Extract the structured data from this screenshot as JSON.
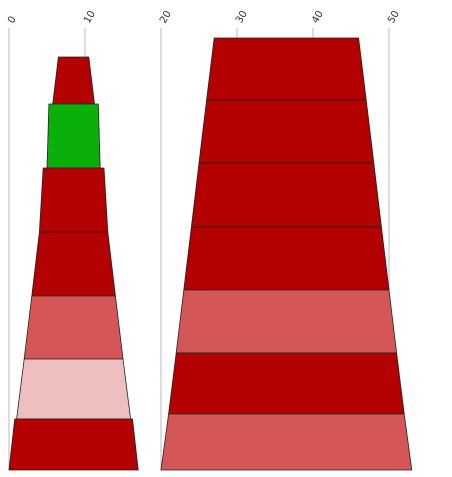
{
  "chart_data": {
    "type": "funnel",
    "title": "",
    "xlabel": "",
    "ylabel": "",
    "grid": true,
    "x_axis": {
      "range": [
        0,
        55
      ],
      "ticks": [
        0,
        10,
        20,
        30,
        40,
        50
      ],
      "tick_labels": [
        "0",
        "10",
        "20",
        "30",
        "40",
        "50"
      ],
      "position": "top",
      "label_rotation": -60
    },
    "colors": {
      "dark_red": "#b30000",
      "medium_red": "#d45656",
      "light_pink": "#efbebe",
      "green": "#0aaf0a"
    },
    "funnels": [
      {
        "offset": 0,
        "shape": "funnel",
        "segments": [
          {
            "top_width": 4.0,
            "bottom_width": 5.5,
            "color": "#b30000"
          },
          {
            "top_width": 6.5,
            "bottom_width": 7.0,
            "color": "#0aaf0a"
          },
          {
            "top_width": 8.0,
            "bottom_width": 9.0,
            "color": "#b30000"
          },
          {
            "top_width": 9.0,
            "bottom_width": 11.0,
            "color": "#b30000"
          },
          {
            "top_width": 11.0,
            "bottom_width": 13.0,
            "color": "#d45656"
          },
          {
            "top_width": 13.0,
            "bottom_width": 15.0,
            "color": "#efbebe"
          },
          {
            "top_width": 15.5,
            "bottom_width": 17.0,
            "color": "#b30000"
          }
        ]
      },
      {
        "offset": 20,
        "shape": "funnel",
        "segments": [
          {
            "top_width": 19.0,
            "bottom_width": 21.0,
            "color": "#b30000"
          },
          {
            "top_width": 21.0,
            "bottom_width": 23.0,
            "color": "#b30000"
          },
          {
            "top_width": 23.0,
            "bottom_width": 25.0,
            "color": "#b30000"
          },
          {
            "top_width": 25.0,
            "bottom_width": 27.0,
            "color": "#b30000"
          },
          {
            "top_width": 27.0,
            "bottom_width": 29.0,
            "color": "#d45656"
          },
          {
            "top_width": 29.0,
            "bottom_width": 31.0,
            "color": "#b30000"
          },
          {
            "top_width": 31.0,
            "bottom_width": 33.0,
            "color": "#d45656"
          }
        ]
      }
    ]
  }
}
